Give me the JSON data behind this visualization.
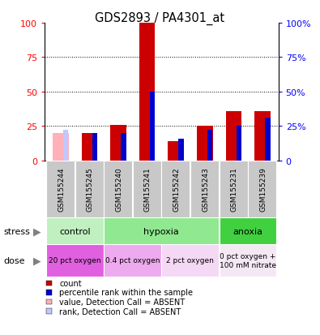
{
  "title": "GDS2893 / PA4301_at",
  "samples": [
    "GSM155244",
    "GSM155245",
    "GSM155240",
    "GSM155241",
    "GSM155242",
    "GSM155243",
    "GSM155231",
    "GSM155239"
  ],
  "count_values": [
    20,
    20,
    26,
    100,
    14,
    25,
    36,
    36
  ],
  "rank_values": [
    22,
    20,
    20,
    50,
    16,
    22,
    25,
    31
  ],
  "is_absent": [
    true,
    false,
    false,
    false,
    false,
    false,
    false,
    false
  ],
  "stress_groups": [
    {
      "label": "control",
      "start": 0,
      "end": 2,
      "color": "#c0f0c0"
    },
    {
      "label": "hypoxia",
      "start": 2,
      "end": 6,
      "color": "#90e890"
    },
    {
      "label": "anoxia",
      "start": 6,
      "end": 8,
      "color": "#40d040"
    }
  ],
  "dose_groups": [
    {
      "label": "20 pct oxygen",
      "start": 0,
      "end": 2,
      "color": "#e060e0"
    },
    {
      "label": "0.4 pct oxygen",
      "start": 2,
      "end": 4,
      "color": "#eeaaee"
    },
    {
      "label": "2 pct oxygen",
      "start": 4,
      "end": 6,
      "color": "#f5d8f5"
    },
    {
      "label": "0 pct oxygen +\n100 mM nitrate",
      "start": 6,
      "end": 8,
      "color": "#f5e8f5"
    }
  ],
  "ylim": [
    0,
    100
  ],
  "yticks": [
    0,
    25,
    50,
    75,
    100
  ],
  "bar_color_count": "#cc0000",
  "bar_color_rank": "#0000cc",
  "bar_color_absent_count": "#ffb0b8",
  "bar_color_absent_rank": "#c0c8ff",
  "sample_bg_color": "#c8c8c8",
  "legend_items": [
    {
      "color": "#cc0000",
      "label": "count"
    },
    {
      "color": "#0000cc",
      "label": "percentile rank within the sample"
    },
    {
      "color": "#ffb0b8",
      "label": "value, Detection Call = ABSENT"
    },
    {
      "color": "#c0c8ff",
      "label": "rank, Detection Call = ABSENT"
    }
  ],
  "fig_width": 3.95,
  "fig_height": 4.14,
  "dpi": 100
}
